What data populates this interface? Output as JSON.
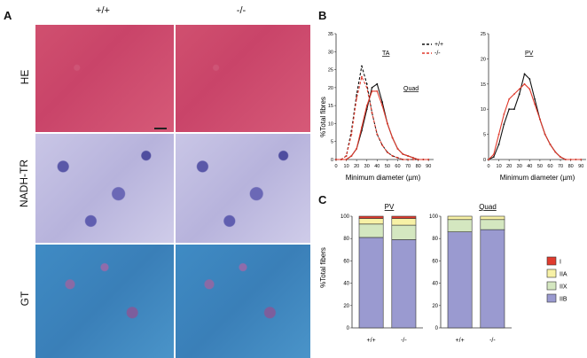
{
  "panels": {
    "a": "A",
    "b": "B",
    "c": "C"
  },
  "panel_a": {
    "columns": [
      "+/+",
      "-/-"
    ],
    "rows": [
      "HE",
      "NADH-TR",
      "GT"
    ]
  },
  "panel_b": {
    "y_label": "%Total fibres",
    "x_label": "Minimum diameter (µm)",
    "legend": [
      "+/+",
      "-/-"
    ],
    "left_tags": [
      "TA",
      "Quad"
    ],
    "right_tag": "PV",
    "x_ticks": [
      "0",
      "10",
      "20",
      "30",
      "40",
      "50",
      "60",
      "70",
      "80",
      "90"
    ],
    "left_y_ticks": [
      "0",
      "5",
      "10",
      "15",
      "20",
      "25",
      "30",
      "35"
    ],
    "right_y_ticks": [
      "0",
      "5",
      "10",
      "15",
      "20",
      "25"
    ]
  },
  "panel_c": {
    "y_label": "%Total fibers",
    "y_ticks": [
      "0",
      "20",
      "40",
      "60",
      "80",
      "100"
    ],
    "x_ticks": [
      "+/+",
      "-/-"
    ],
    "legend": [
      "I",
      "IIA",
      "IIX",
      "IIB"
    ]
  },
  "colors": {
    "wt_line": "#111111",
    "ko_line": "#e0392b",
    "I": "#e03b2e",
    "IIA": "#f7f1a6",
    "IIX": "#d4e7c0",
    "IIB": "#9a9ad0"
  },
  "chart_data": [
    {
      "type": "line",
      "panel": "B-left",
      "x": [
        0,
        5,
        10,
        15,
        20,
        25,
        30,
        35,
        40,
        45,
        50,
        55,
        60,
        65,
        70,
        75,
        80,
        85,
        90
      ],
      "series": [
        {
          "name": "+/+",
          "subset": "TA",
          "values": [
            0,
            0,
            1,
            8,
            18,
            26,
            21,
            13,
            7,
            4,
            2,
            1,
            0.5,
            0,
            0,
            0,
            0,
            0,
            0
          ]
        },
        {
          "name": "-/-",
          "subset": "TA",
          "values": [
            0,
            0,
            1,
            7,
            17,
            23,
            20,
            13,
            7,
            4,
            2,
            1,
            0.5,
            0,
            0,
            0,
            0,
            0,
            0
          ]
        },
        {
          "name": "+/+",
          "subset": "Quad",
          "values": [
            0,
            0,
            0,
            1,
            3,
            8,
            14,
            20,
            21,
            16,
            10,
            6,
            3,
            1.5,
            1,
            0.5,
            0,
            0,
            0
          ]
        },
        {
          "name": "-/-",
          "subset": "Quad",
          "values": [
            0,
            0,
            0,
            1,
            3,
            9,
            15,
            19,
            19,
            15,
            10,
            6,
            3,
            1.5,
            1,
            0.5,
            0,
            0,
            0
          ]
        }
      ],
      "ylim": [
        0,
        35
      ],
      "xlim": [
        0,
        95
      ]
    },
    {
      "type": "line",
      "panel": "B-right",
      "title": "PV",
      "x": [
        0,
        5,
        10,
        15,
        20,
        25,
        30,
        35,
        40,
        45,
        50,
        55,
        60,
        65,
        70,
        75,
        80,
        85,
        90
      ],
      "series": [
        {
          "name": "+/+",
          "values": [
            0,
            0.5,
            3,
            7,
            10,
            10,
            13,
            17,
            16,
            12,
            8,
            5,
            3,
            1.5,
            0.5,
            0,
            0,
            0,
            0
          ]
        },
        {
          "name": "-/-",
          "values": [
            0,
            1,
            5,
            9,
            12,
            13,
            14,
            15,
            14,
            11,
            8,
            5,
            3,
            1.5,
            0.5,
            0,
            0,
            0,
            0
          ]
        }
      ],
      "ylim": [
        0,
        25
      ],
      "xlim": [
        0,
        95
      ]
    },
    {
      "type": "bar",
      "panel": "C-left",
      "title": "PV",
      "categories": [
        "+/+",
        "-/-"
      ],
      "series": [
        {
          "name": "IIB",
          "values": [
            81,
            79
          ]
        },
        {
          "name": "IIX",
          "values": [
            12,
            13
          ]
        },
        {
          "name": "IIA",
          "values": [
            5,
            6
          ]
        },
        {
          "name": "I",
          "values": [
            2,
            2
          ]
        }
      ],
      "stacked": true,
      "ylim": [
        0,
        100
      ]
    },
    {
      "type": "bar",
      "panel": "C-right",
      "title": "Quad",
      "categories": [
        "+/+",
        "-/-"
      ],
      "series": [
        {
          "name": "IIB",
          "values": [
            86,
            88
          ]
        },
        {
          "name": "IIX",
          "values": [
            11,
            9
          ]
        },
        {
          "name": "IIA",
          "values": [
            3,
            3
          ]
        },
        {
          "name": "I",
          "values": [
            0,
            0
          ]
        }
      ],
      "stacked": true,
      "ylim": [
        0,
        100
      ]
    }
  ]
}
